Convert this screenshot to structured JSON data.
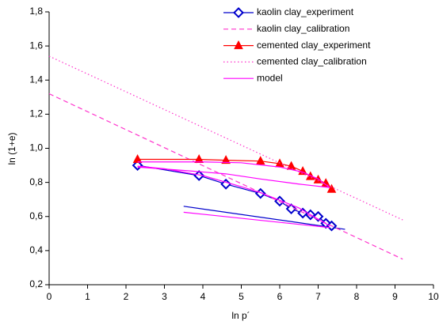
{
  "chart_data": {
    "type": "line",
    "xlabel": "ln p´",
    "ylabel": "ln (1+e)",
    "xlim": [
      0,
      10
    ],
    "xticks": [
      0,
      1,
      2,
      3,
      4,
      5,
      6,
      7,
      8,
      9,
      10
    ],
    "ylim": [
      0.2,
      1.8
    ],
    "yticks": [
      {
        "value": 0.2,
        "label": "0,2"
      },
      {
        "value": 0.4,
        "label": "0,4"
      },
      {
        "value": 0.6,
        "label": "0,6"
      },
      {
        "value": 0.8,
        "label": "0,8"
      },
      {
        "value": 1.0,
        "label": "1,0"
      },
      {
        "value": 1.2,
        "label": "1,2"
      },
      {
        "value": 1.4,
        "label": "1,4"
      },
      {
        "value": 1.6,
        "label": "1,6"
      },
      {
        "value": 1.8,
        "label": "1,8"
      }
    ],
    "legend": "upper right",
    "series": [
      {
        "name": "kaolin clay_experiment",
        "color": "#0000cc",
        "line": "solid",
        "marker": "diamond",
        "x": [
          2.3,
          3.9,
          4.6,
          5.5,
          6.0,
          6.3,
          6.6,
          6.8,
          7.0,
          7.2,
          7.35
        ],
        "values": [
          0.9,
          0.84,
          0.79,
          0.735,
          0.69,
          0.645,
          0.62,
          0.61,
          0.6,
          0.56,
          0.545
        ]
      },
      {
        "name": "kaolin clay_calibration",
        "color": "#ff33cc",
        "line": "dashed",
        "marker": null,
        "x": [
          0,
          9.2
        ],
        "values": [
          1.32,
          0.35
        ]
      },
      {
        "name": "cemented clay_experiment",
        "color": "#ff0000",
        "line": "solid",
        "marker": "triangle",
        "x": [
          2.3,
          3.9,
          4.6,
          5.5,
          6.0,
          6.3,
          6.6,
          6.8,
          7.0,
          7.2,
          7.35
        ],
        "values": [
          0.935,
          0.935,
          0.93,
          0.925,
          0.91,
          0.895,
          0.865,
          0.835,
          0.815,
          0.795,
          0.76
        ]
      },
      {
        "name": "cemented clay_calibration",
        "color": "#ff33cc",
        "line": "dotted",
        "marker": null,
        "x": [
          0,
          9.2
        ],
        "values": [
          1.54,
          0.58
        ]
      },
      {
        "name": "model",
        "color": "#ff00ff",
        "line": "solid",
        "marker": null,
        "x": [
          2.3,
          4.0,
          5.0,
          6.0,
          6.6,
          7.0,
          7.3,
          null,
          2.3,
          3.5,
          4.6,
          5.5,
          6.5,
          7.3,
          null,
          2.3,
          3.0,
          4.0,
          5.0,
          5.5,
          6.5,
          7.3,
          null,
          3.5,
          7.3
        ],
        "values": [
          0.92,
          0.92,
          0.915,
          0.89,
          0.86,
          0.82,
          0.77,
          null,
          0.89,
          0.87,
          0.85,
          0.82,
          0.79,
          0.77,
          null,
          0.895,
          0.88,
          0.84,
          0.775,
          0.74,
          0.65,
          0.545,
          null,
          0.625,
          0.535
        ]
      }
    ],
    "unloading_line": {
      "color": "#0000cc",
      "x": [
        3.5,
        7.7
      ],
      "values": [
        0.66,
        0.525
      ]
    }
  }
}
